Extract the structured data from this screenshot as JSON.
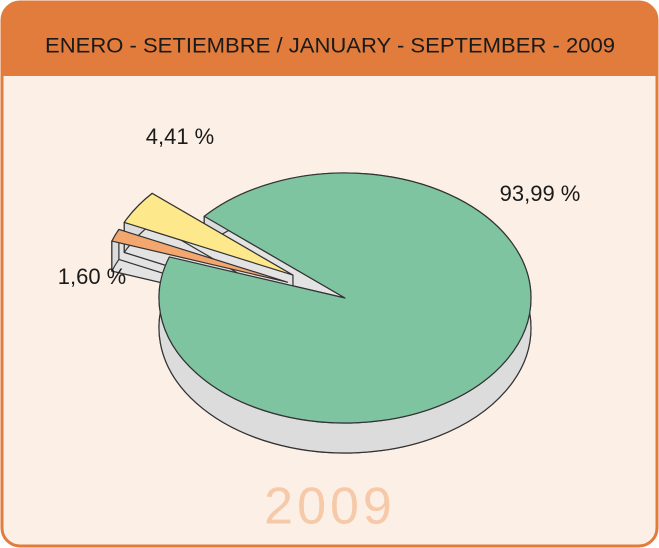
{
  "chart_data": {
    "type": "pie",
    "title": "ENERO - SETIEMBRE / JANUARY - SEPTEMBER - 2009",
    "watermark": "2009",
    "values": [
      93.99,
      1.6,
      4.41
    ],
    "value_labels": [
      "93,99 %",
      "1,60 %",
      "4,41 %"
    ],
    "colors": [
      "#7fc4a0",
      "#f3a66e",
      "#fde98c"
    ]
  }
}
